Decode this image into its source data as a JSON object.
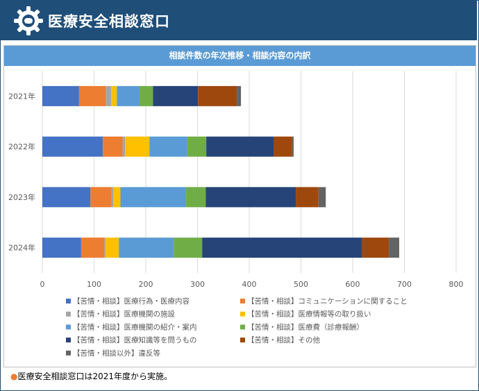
{
  "header": {
    "title": "医療安全相談窓口"
  },
  "footnote": {
    "marker": "●",
    "text": "医療安全相談窓口は2021年度から実施。"
  },
  "chart_data": {
    "type": "bar",
    "orientation": "horizontal",
    "stacked": true,
    "title": "相談件数の年次推移・相談内容の内訳",
    "categories": [
      "2021年",
      "2022年",
      "2023年",
      "2024年"
    ],
    "xlim": [
      0,
      800
    ],
    "xticks": [
      0,
      100,
      200,
      300,
      400,
      500,
      600,
      700,
      800
    ],
    "grid": true,
    "legend_position": "bottom",
    "series": [
      {
        "name": "【苦情・相談】医療行為・医療内容",
        "color": "#4472c4",
        "values": [
          71,
          117,
          93,
          75
        ]
      },
      {
        "name": "【苦情・相談】コミュニケーションに関すること",
        "color": "#ed7d31",
        "values": [
          52,
          38,
          41,
          45
        ]
      },
      {
        "name": "【苦情・相談】医療機関の施設",
        "color": "#a5a5a5",
        "values": [
          10,
          5,
          3,
          2
        ]
      },
      {
        "name": "【苦情・相談】医療情報等の取り扱い",
        "color": "#ffc000",
        "values": [
          11,
          47,
          14,
          26
        ]
      },
      {
        "name": "【苦情・相談】医療機関の紹介・案内",
        "color": "#5b9bd5",
        "values": [
          44,
          73,
          127,
          106
        ]
      },
      {
        "name": "【苦情・相談】医療費（診療報酬）",
        "color": "#70ad47",
        "values": [
          26,
          37,
          38,
          55
        ]
      },
      {
        "name": "【苦情・相談】医療知識等を問うもの",
        "color": "#264478",
        "values": [
          87,
          130,
          174,
          309
        ]
      },
      {
        "name": "【苦情・相談】その他",
        "color": "#9e480e",
        "values": [
          75,
          36,
          44,
          52
        ]
      },
      {
        "name": "【苦情・相談以外】違反等",
        "color": "#636363",
        "values": [
          8,
          3,
          14,
          20
        ]
      }
    ]
  }
}
